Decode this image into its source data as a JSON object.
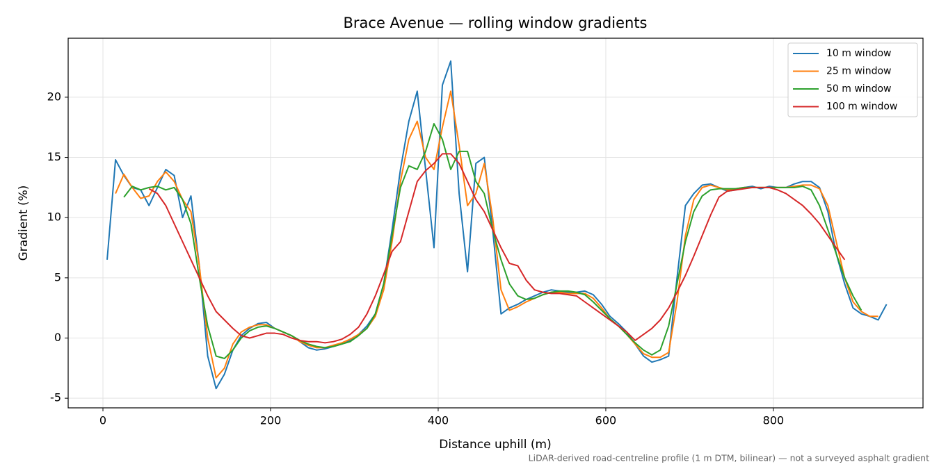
{
  "chart_data": {
    "type": "line",
    "title": "Brace Avenue — rolling window gradients",
    "xlabel": "Distance uphill (m)",
    "ylabel": "Gradient (%)",
    "footnote": "LiDAR-derived road-centreline profile (1 m DTM, bilinear) — not a surveyed asphalt gradient",
    "x": [
      5,
      15,
      25,
      35,
      45,
      55,
      65,
      75,
      85,
      95,
      105,
      115,
      125,
      135,
      145,
      155,
      165,
      175,
      185,
      195,
      205,
      215,
      225,
      235,
      245,
      255,
      265,
      275,
      285,
      295,
      305,
      315,
      325,
      335,
      345,
      355,
      365,
      375,
      385,
      395,
      405,
      415,
      425,
      435,
      445,
      455,
      465,
      475,
      485,
      495,
      505,
      515,
      525,
      535,
      545,
      555,
      565,
      575,
      585,
      595,
      605,
      615,
      625,
      635,
      645,
      655,
      665,
      675,
      685,
      695,
      705,
      715,
      725,
      735,
      745,
      755,
      765,
      775,
      785,
      795,
      805,
      815,
      825,
      835,
      845,
      855,
      865,
      875,
      885,
      895,
      905,
      915,
      925,
      935
    ],
    "series": [
      {
        "name": "10 m window",
        "color": "#1f77b4",
        "values": [
          6.5,
          14.8,
          13.5,
          12.5,
          12.3,
          11.0,
          12.5,
          14.0,
          13.5,
          10.0,
          11.8,
          6.0,
          -1.5,
          -4.2,
          -3.0,
          -1.0,
          0.2,
          0.8,
          1.2,
          1.3,
          0.8,
          0.5,
          0.2,
          -0.3,
          -0.8,
          -1.0,
          -0.9,
          -0.7,
          -0.5,
          -0.2,
          0.3,
          1.0,
          2.0,
          4.5,
          9.0,
          14.0,
          18.0,
          20.5,
          14.0,
          7.5,
          21.0,
          23.0,
          12.0,
          5.5,
          14.5,
          15.0,
          9.0,
          2.0,
          2.5,
          2.8,
          3.2,
          3.5,
          3.8,
          4.0,
          3.9,
          3.8,
          3.8,
          3.9,
          3.6,
          2.8,
          1.8,
          1.2,
          0.5,
          -0.5,
          -1.5,
          -2.0,
          -1.8,
          -1.5,
          5.0,
          11.0,
          12.0,
          12.7,
          12.8,
          12.5,
          12.2,
          12.3,
          12.5,
          12.6,
          12.4,
          12.6,
          12.5,
          12.5,
          12.8,
          13.0,
          13.0,
          12.5,
          10.5,
          7.0,
          4.5,
          2.5,
          2.0,
          1.8,
          1.5,
          2.8
        ]
      },
      {
        "name": "25 m window",
        "color": "#ff7f0e",
        "values": [
          null,
          12.0,
          13.6,
          12.5,
          11.6,
          11.8,
          13.0,
          13.8,
          13.0,
          11.5,
          10.5,
          6.0,
          0.0,
          -3.3,
          -2.5,
          -0.5,
          0.5,
          0.9,
          1.1,
          1.1,
          0.8,
          0.5,
          0.2,
          -0.3,
          -0.6,
          -0.8,
          -0.8,
          -0.6,
          -0.4,
          -0.1,
          0.3,
          0.8,
          1.8,
          4.0,
          8.0,
          13.0,
          16.5,
          18.0,
          15.0,
          14.0,
          17.5,
          20.5,
          16.0,
          11.0,
          12.0,
          14.5,
          10.0,
          4.0,
          2.3,
          2.6,
          3.0,
          3.3,
          3.6,
          3.8,
          3.8,
          3.7,
          3.7,
          3.7,
          3.3,
          2.5,
          1.6,
          1.0,
          0.3,
          -0.5,
          -1.3,
          -1.6,
          -1.6,
          -1.2,
          3.0,
          8.5,
          11.5,
          12.5,
          12.7,
          12.5,
          12.3,
          12.4,
          12.5,
          12.5,
          12.5,
          12.5,
          12.5,
          12.5,
          12.6,
          12.7,
          12.7,
          12.4,
          11.0,
          8.0,
          5.0,
          3.0,
          2.2,
          1.8,
          1.8,
          null
        ]
      },
      {
        "name": "50 m window",
        "color": "#2ca02c",
        "values": [
          null,
          null,
          11.7,
          12.6,
          12.3,
          12.5,
          12.6,
          12.3,
          12.5,
          11.5,
          9.5,
          5.0,
          1.0,
          -1.5,
          -1.7,
          -1.0,
          0.0,
          0.6,
          0.9,
          1.0,
          0.8,
          0.5,
          0.2,
          -0.2,
          -0.5,
          -0.7,
          -0.8,
          -0.7,
          -0.5,
          -0.3,
          0.2,
          0.8,
          2.0,
          4.5,
          8.5,
          12.5,
          14.3,
          14.0,
          15.5,
          17.8,
          16.5,
          14.0,
          15.5,
          15.5,
          13.0,
          12.0,
          9.0,
          6.5,
          4.5,
          3.5,
          3.2,
          3.3,
          3.6,
          3.8,
          3.9,
          3.9,
          3.8,
          3.6,
          3.0,
          2.3,
          1.6,
          1.0,
          0.3,
          -0.4,
          -1.0,
          -1.4,
          -1.0,
          1.0,
          4.5,
          8.0,
          10.5,
          11.8,
          12.3,
          12.4,
          12.4,
          12.4,
          12.5,
          12.5,
          12.5,
          12.5,
          12.5,
          12.5,
          12.5,
          12.6,
          12.3,
          11.0,
          9.0,
          7.0,
          5.0,
          3.5,
          2.3,
          null,
          null,
          null
        ]
      },
      {
        "name": "100 m window",
        "color": "#d62728",
        "values": [
          null,
          null,
          null,
          null,
          null,
          12.4,
          12.0,
          11.0,
          9.5,
          8.0,
          6.5,
          5.0,
          3.5,
          2.2,
          1.5,
          0.8,
          0.2,
          0.0,
          0.2,
          0.4,
          0.4,
          0.3,
          0.0,
          -0.2,
          -0.3,
          -0.3,
          -0.4,
          -0.3,
          -0.1,
          0.3,
          0.9,
          2.0,
          3.5,
          5.3,
          7.2,
          8.0,
          10.5,
          13.0,
          13.9,
          14.5,
          15.3,
          15.3,
          14.5,
          13.0,
          11.5,
          10.5,
          9.0,
          7.5,
          6.2,
          6.0,
          4.8,
          4.0,
          3.8,
          3.7,
          3.7,
          3.6,
          3.5,
          3.0,
          2.5,
          2.0,
          1.5,
          1.0,
          0.5,
          -0.2,
          0.3,
          0.8,
          1.5,
          2.5,
          3.8,
          5.2,
          6.8,
          8.5,
          10.2,
          11.7,
          12.2,
          12.3,
          12.4,
          12.5,
          12.5,
          12.5,
          12.3,
          12.0,
          11.5,
          11.0,
          10.3,
          9.5,
          8.5,
          7.5,
          6.5,
          null,
          null,
          null,
          null,
          null
        ]
      }
    ],
    "xlim": [
      -41.5,
      978.5
    ],
    "ylim": [
      -5.8,
      24.9
    ],
    "xticks": [
      0,
      200,
      400,
      600,
      800
    ],
    "yticks": [
      -5,
      0,
      5,
      10,
      15,
      20
    ],
    "grid": true,
    "legend": "upper right"
  }
}
